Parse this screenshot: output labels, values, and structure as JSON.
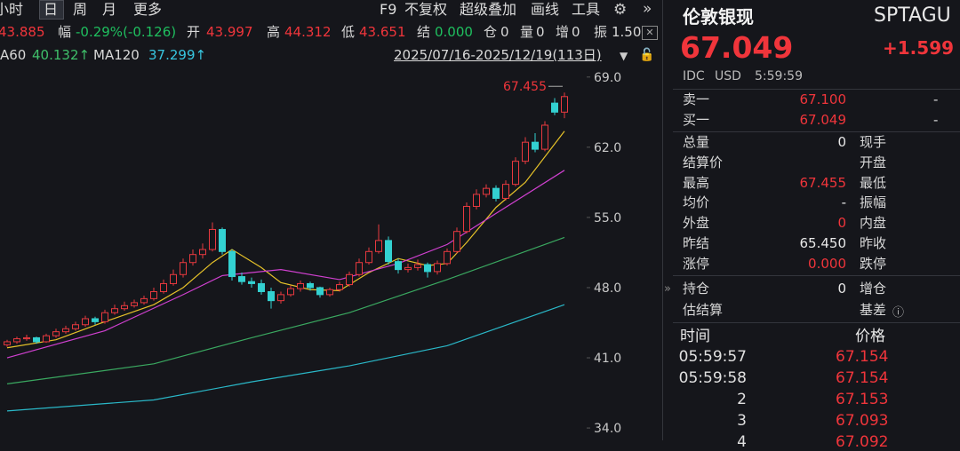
{
  "toolbar": {
    "periods": [
      "小时",
      "日",
      "周",
      "月",
      "更多"
    ],
    "tools": [
      "F9",
      "不复权",
      "超级叠加",
      "画线",
      "工具"
    ]
  },
  "quote_bar": [
    {
      "value": "43.885",
      "color": "#f0353b"
    },
    {
      "label": "幅",
      "value": "-0.29%(-0.126)",
      "color": "#1fbf5f"
    },
    {
      "label": "开",
      "value": "43.997",
      "color": "#f0353b"
    },
    {
      "label": "高",
      "value": "44.312",
      "color": "#f0353b"
    },
    {
      "label": "低",
      "value": "43.651",
      "color": "#f0353b"
    },
    {
      "label": "结",
      "value": "0.000",
      "color": "#1fbf5f"
    },
    {
      "label": "仓",
      "value": "0",
      "color": "#d8d8d8"
    },
    {
      "label": "量",
      "value": "0",
      "color": "#d8d8d8"
    },
    {
      "label": "增",
      "value": "0",
      "color": "#d8d8d8"
    },
    {
      "label": "振",
      "value": "1.50",
      "color": "#d8d8d8"
    }
  ],
  "ma_bar": {
    "items": [
      {
        "label": "A60",
        "value": "40.132↑",
        "color": "#3fbf6a"
      },
      {
        "label": "MA120",
        "value": "37.299↑",
        "color": "#38c6e0"
      }
    ],
    "range": "2025/07/16-2025/12/19(113日)"
  },
  "chart_data": {
    "type": "candlestick",
    "open": [
      42.3,
      42.6,
      42.9,
      43.0,
      42.6,
      43.2,
      43.6,
      43.9,
      44.3,
      44.9,
      44.6,
      45.5,
      45.9,
      46.2,
      46.5,
      46.9,
      47.6,
      48.4,
      49.3,
      50.5,
      51.3,
      51.8,
      53.8,
      51.6,
      49.1,
      48.6,
      48.4,
      47.6,
      46.7,
      47.3,
      47.9,
      48.4,
      48.0,
      47.3,
      47.8,
      48.3,
      49.3,
      50.5,
      51.6,
      52.7,
      50.6,
      49.8,
      50.0,
      50.3,
      49.6,
      50.4,
      51.6,
      53.6,
      56.1,
      57.3,
      57.9,
      56.9,
      58.3,
      60.6,
      62.5,
      61.8,
      66.4,
      65.5
    ],
    "high": [
      42.8,
      43.1,
      43.3,
      43.1,
      43.4,
      43.9,
      44.2,
      44.6,
      45.2,
      45.1,
      45.8,
      46.3,
      46.6,
      46.8,
      47.2,
      48.0,
      48.8,
      49.8,
      50.9,
      51.8,
      52.4,
      54.5,
      54.0,
      51.8,
      49.5,
      49.0,
      48.8,
      48.0,
      47.6,
      48.2,
      48.7,
      48.6,
      48.1,
      48.0,
      48.6,
      49.6,
      50.9,
      52.0,
      54.3,
      53.1,
      50.9,
      50.4,
      50.8,
      50.5,
      50.7,
      51.9,
      54.0,
      56.5,
      57.8,
      58.3,
      58.2,
      58.7,
      61.0,
      63.0,
      63.4,
      64.6,
      66.9,
      67.455
    ],
    "low": [
      42.1,
      42.4,
      42.7,
      42.4,
      42.5,
      43.0,
      43.4,
      43.7,
      44.1,
      44.3,
      44.4,
      45.3,
      45.7,
      46.0,
      46.3,
      46.7,
      47.4,
      48.2,
      49.0,
      50.2,
      50.9,
      51.6,
      51.3,
      48.7,
      48.3,
      48.0,
      47.3,
      45.9,
      46.4,
      47.1,
      47.6,
      47.7,
      47.0,
      47.1,
      47.6,
      48.1,
      49.1,
      50.3,
      51.4,
      50.3,
      49.4,
      49.5,
      49.7,
      49.0,
      49.3,
      50.2,
      51.4,
      53.4,
      55.8,
      57.0,
      56.6,
      56.7,
      58.1,
      60.3,
      61.5,
      61.6,
      65.2,
      64.9
    ],
    "close": [
      42.6,
      42.9,
      43.0,
      42.6,
      43.2,
      43.6,
      43.9,
      44.3,
      44.9,
      44.6,
      45.5,
      45.9,
      46.2,
      46.5,
      46.9,
      47.6,
      48.4,
      49.3,
      50.5,
      51.3,
      51.8,
      53.8,
      51.6,
      49.1,
      48.6,
      48.4,
      47.6,
      46.7,
      47.3,
      47.9,
      48.4,
      48.0,
      47.3,
      47.8,
      48.3,
      49.3,
      50.5,
      51.6,
      52.7,
      50.6,
      49.8,
      50.0,
      50.3,
      49.6,
      50.4,
      51.6,
      53.6,
      56.1,
      57.3,
      57.9,
      56.9,
      58.3,
      60.6,
      62.5,
      61.8,
      64.2,
      65.5,
      67.049
    ],
    "up_color": "#e8393f",
    "down_color": "#33d1d1",
    "lines": [
      {
        "color": "#e6c229",
        "x": [
          0,
          5,
          10,
          15,
          18,
          21,
          23,
          26,
          28,
          31,
          34,
          37,
          40,
          43,
          45,
          47,
          50,
          53,
          57
        ],
        "values": [
          42.0,
          42.8,
          44.6,
          46.3,
          48.0,
          50.5,
          51.8,
          50.0,
          48.5,
          47.8,
          47.7,
          49.5,
          50.9,
          50.2,
          50.4,
          52.5,
          56.0,
          58.5,
          63.6
        ]
      },
      {
        "color": "#d040d0",
        "x": [
          0,
          10,
          18,
          22,
          28,
          34,
          40,
          45,
          50,
          57
        ],
        "values": [
          41.0,
          43.7,
          47.3,
          49.2,
          49.8,
          48.8,
          50.4,
          52.3,
          55.4,
          59.7
        ]
      },
      {
        "color": "#3aa860",
        "x": [
          0,
          15,
          25,
          35,
          45,
          57
        ],
        "values": [
          38.4,
          40.4,
          43.0,
          45.5,
          48.8,
          53.0
        ]
      },
      {
        "color": "#2ab8c8",
        "x": [
          0,
          15,
          25,
          35,
          45,
          57
        ],
        "values": [
          35.7,
          36.8,
          38.6,
          40.2,
          42.2,
          46.3
        ]
      }
    ],
    "high_label": "67.455",
    "ylim": [
      33.3,
      69.6
    ],
    "yticks": [
      {
        "value": 69,
        "label": "69.0"
      },
      {
        "value": 62,
        "label": "62.0"
      },
      {
        "value": 55,
        "label": "55.0"
      },
      {
        "value": 48,
        "label": "48.0"
      },
      {
        "value": 41,
        "label": "41.0"
      },
      {
        "value": 34,
        "label": "34.0"
      }
    ]
  },
  "right_panel": {
    "name": "伦敦银现",
    "code": "SPTAGU",
    "price": "67.049",
    "change": "+1.599",
    "meta": [
      "IDC",
      "USD",
      "5:59:59"
    ],
    "book": [
      {
        "label": "卖一",
        "value": "67.100",
        "volume": "-"
      },
      {
        "label": "买一",
        "value": "67.049",
        "volume": "-"
      }
    ],
    "stats": [
      {
        "label": "总量",
        "value": "0",
        "label2": "现手"
      },
      {
        "label": "结算价",
        "label2": "开盘"
      },
      {
        "label": "最高",
        "value": "67.455",
        "label2": "最低",
        "color": "#f0353b"
      },
      {
        "label": "均价",
        "value": "-",
        "label2": "振幅"
      },
      {
        "label": "外盘",
        "value": "0",
        "label2": "内盘",
        "color": "#f0353b"
      },
      {
        "label": "昨结",
        "value": "65.450",
        "label2": "昨收"
      },
      {
        "label": "涨停",
        "value": "0.000",
        "label2": "跌停",
        "color": "#f0353b"
      }
    ],
    "holdings": [
      {
        "label": "持仓",
        "value": "0",
        "label2": "增仓"
      },
      {
        "label": "估结算",
        "label2": "基差"
      }
    ],
    "trades": {
      "header": [
        "时间",
        "价格"
      ],
      "rows": [
        [
          "05:59:57",
          "67.154"
        ],
        [
          "05:59:58",
          "67.154"
        ],
        [
          "2",
          "67.153"
        ],
        [
          "3",
          "67.093"
        ],
        [
          "4",
          "67.092"
        ]
      ]
    }
  }
}
